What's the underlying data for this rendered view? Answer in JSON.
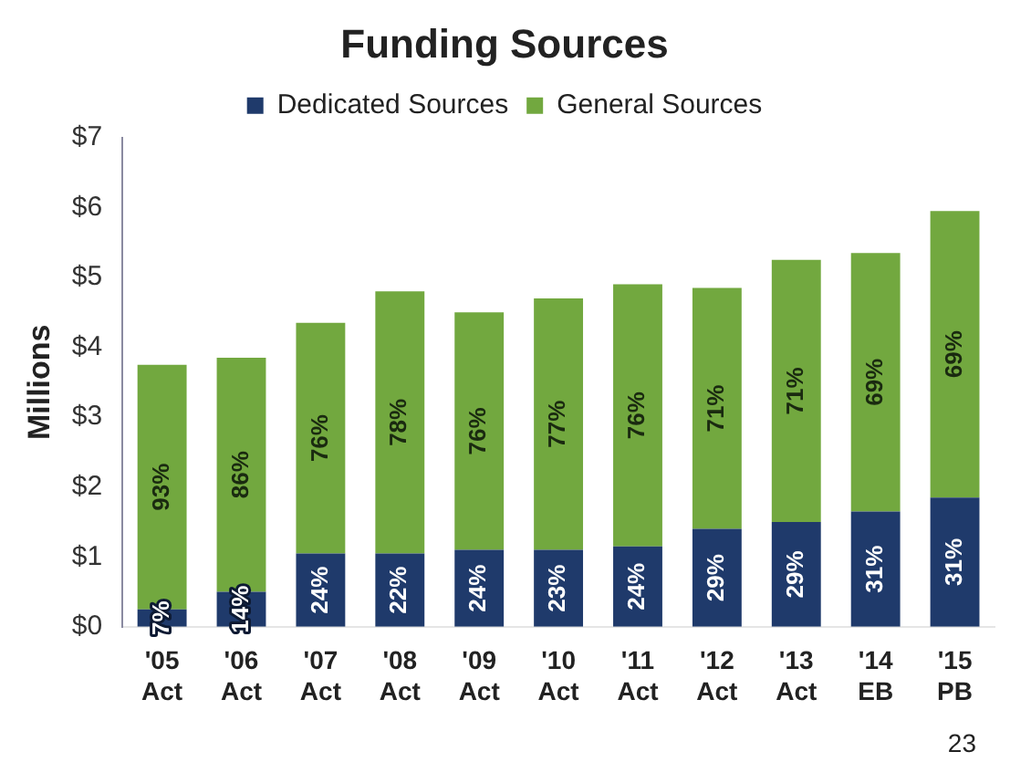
{
  "chart_data": {
    "type": "bar",
    "title": "Funding Sources",
    "ylabel": "Millions",
    "stacked": true,
    "legend": "top",
    "grid": false,
    "categories": [
      "'05 Act",
      "'06 Act",
      "'07 Act",
      "'08 Act",
      "'09 Act",
      "'10 Act",
      "'11 Act",
      "'12 Act",
      "'13 Act",
      "'14 EB",
      "'15 PB"
    ],
    "series": [
      {
        "name": "Dedicated Sources",
        "color": "#1f3a6b",
        "values": [
          0.25,
          0.5,
          1.05,
          1.05,
          1.1,
          1.1,
          1.15,
          1.4,
          1.5,
          1.65,
          1.85
        ]
      },
      {
        "name": "General Sources",
        "color": "#72a83f",
        "values": [
          3.5,
          3.35,
          3.3,
          3.75,
          3.4,
          3.6,
          3.75,
          3.45,
          3.75,
          3.7,
          4.1
        ]
      }
    ],
    "ylim": [
      0,
      7
    ],
    "yticks": [
      {
        "value": 0,
        "label": "$0"
      },
      {
        "value": 1,
        "label": "$1"
      },
      {
        "value": 2,
        "label": "$2"
      },
      {
        "value": 3,
        "label": "$3"
      },
      {
        "value": 4,
        "label": "$4"
      },
      {
        "value": 5,
        "label": "$5"
      },
      {
        "value": 6,
        "label": "$6"
      },
      {
        "value": 7,
        "label": "$7"
      }
    ],
    "annotations": [
      "7%",
      "14%",
      "24%",
      "22%",
      "24%",
      "23%",
      "24%",
      "29%",
      "29%",
      "31%",
      "31%",
      "93%",
      "86%",
      "76%",
      "78%",
      "76%",
      "77%",
      "76%",
      "71%",
      "71%",
      "69%",
      "69%",
      "23"
    ]
  }
}
